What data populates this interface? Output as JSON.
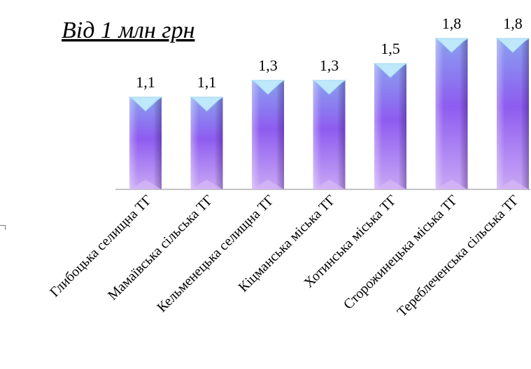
{
  "chart_data": {
    "type": "bar",
    "title": "Від 1 млн грн",
    "categories": [
      "Глибоцька селищна ТГ",
      "Мамаївська сільська ТГ",
      "Кельменецька селищна ТГ",
      "Кіцманська міська ТГ",
      "Хотинська міська ТГ",
      "Сторожинецька міська ТГ",
      "Тереблеченська сільська ТГ"
    ],
    "values": [
      1.1,
      1.1,
      1.3,
      1.3,
      1.5,
      1.8,
      1.8
    ],
    "value_labels": [
      "1,1",
      "1,1",
      "1,3",
      "1,3",
      "1,5",
      "1,8",
      "1,8"
    ],
    "xlabel": "",
    "ylabel": "",
    "ylim": [
      0,
      1.9
    ],
    "grid": false,
    "legend": "none",
    "colors": {
      "bar_top": "#8aa0f0",
      "bar_mid": "#8e5cf0",
      "bar_bottom": "#c9a8f5",
      "cap": "#bfe8fb",
      "axis": "#888888"
    }
  }
}
